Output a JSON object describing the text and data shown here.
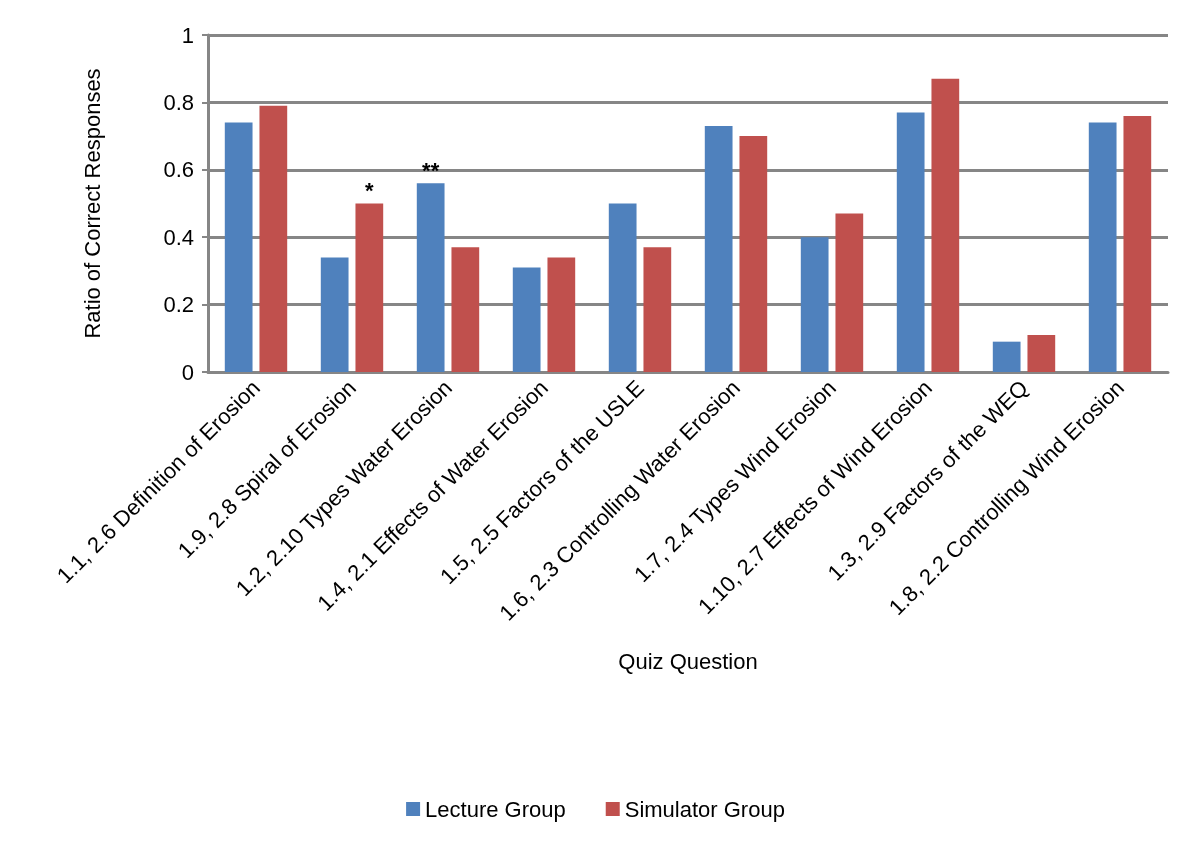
{
  "chart_data": {
    "type": "bar",
    "xlabel": "Quiz Question",
    "ylabel": "Ratio of Correct Responses",
    "categories": [
      "1.1, 2.6 Definition of Erosion",
      "1.9, 2.8 Spiral of Erosion",
      "1.2, 2.10 Types Water Erosion",
      "1.4, 2.1 Effects of Water Erosion",
      "1.5, 2.5 Factors of the USLE",
      "1.6, 2.3 Controlling Water Erosion",
      "1.7, 2.4 Types Wind Erosion",
      "1.10, 2.7 Effects of Wind Erosion",
      "1.3, 2.9 Factors of the WEQ",
      "1.8, 2.2 Controlling Wind Erosion"
    ],
    "series": [
      {
        "name": "Lecture Group",
        "color": "#4f81bd",
        "values": [
          0.74,
          0.34,
          0.56,
          0.31,
          0.5,
          0.73,
          0.4,
          0.77,
          0.09,
          0.74
        ]
      },
      {
        "name": "Simulator Group",
        "color": "#c0504d",
        "values": [
          0.79,
          0.5,
          0.37,
          0.34,
          0.37,
          0.7,
          0.47,
          0.87,
          0.11,
          0.76
        ]
      }
    ],
    "ylim": [
      0,
      1
    ],
    "yticks": [
      0,
      0.2,
      0.4,
      0.6,
      0.8,
      1
    ],
    "grid": "y",
    "legend": "bottom",
    "annotations": [
      {
        "text": "*",
        "x": "1.9, 2.8 Spiral of Erosion",
        "y": 0.5
      },
      {
        "text": "**",
        "x": "1.2, 2.10 Types Water Erosion",
        "y": 0.56
      }
    ]
  }
}
